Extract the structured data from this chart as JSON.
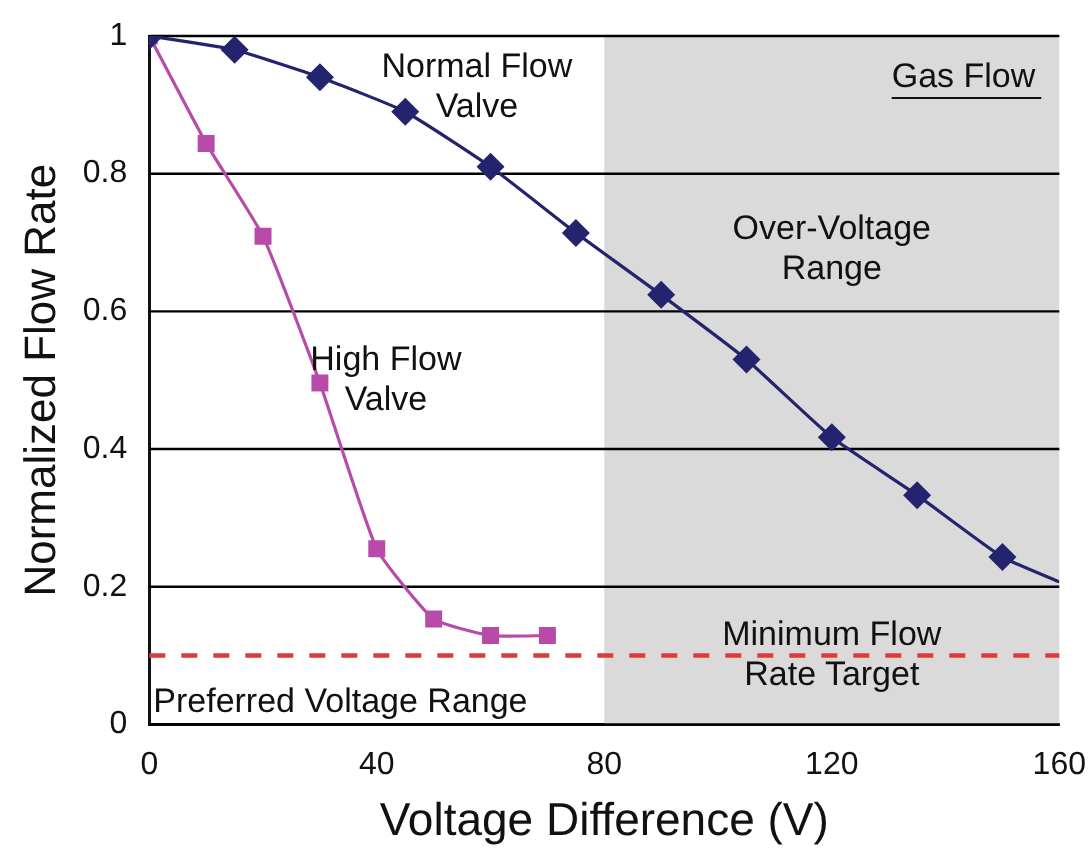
{
  "chart_data": {
    "type": "line",
    "xlabel": "Voltage Difference (V)",
    "ylabel": "Normalized Flow Rate",
    "xlim": [
      0,
      160
    ],
    "xticks": [
      0,
      40,
      80,
      120,
      160
    ],
    "ylim": [
      0,
      1
    ],
    "yticks": [
      0,
      0.2,
      0.4,
      0.6,
      0.8,
      1
    ],
    "grid": "y",
    "legend": false,
    "line_style": "solid",
    "series": [
      {
        "name": "Normal Flow Valve",
        "color": "#24246e",
        "marker": "diamond",
        "x": [
          0,
          15,
          30,
          45,
          60,
          75,
          90,
          105,
          120,
          135,
          150,
          160
        ],
        "values": [
          1.0,
          0.98,
          0.94,
          0.89,
          0.81,
          0.714,
          0.624,
          0.53,
          0.417,
          0.333,
          0.243,
          0.207
        ]
      },
      {
        "name": "High Flow Valve",
        "color": "#b84aa8",
        "marker": "square",
        "x": [
          0,
          10,
          20,
          30,
          40,
          50,
          60,
          70
        ],
        "values": [
          1.0,
          0.844,
          0.709,
          0.496,
          0.255,
          0.153,
          0.129,
          0.129
        ]
      }
    ],
    "ref_lines": [
      {
        "axis": "y",
        "value": 0.1,
        "label": "Minimum Flow Rate Target",
        "color": "#e03a3a",
        "line_style": "dashed"
      }
    ],
    "bands": [
      {
        "axis": "x",
        "from": 80,
        "to": 160,
        "label": "Over-Voltage Range",
        "color": "#dadada"
      }
    ],
    "annotations": [
      "Gas Flow",
      "Preferred Voltage Range"
    ]
  }
}
